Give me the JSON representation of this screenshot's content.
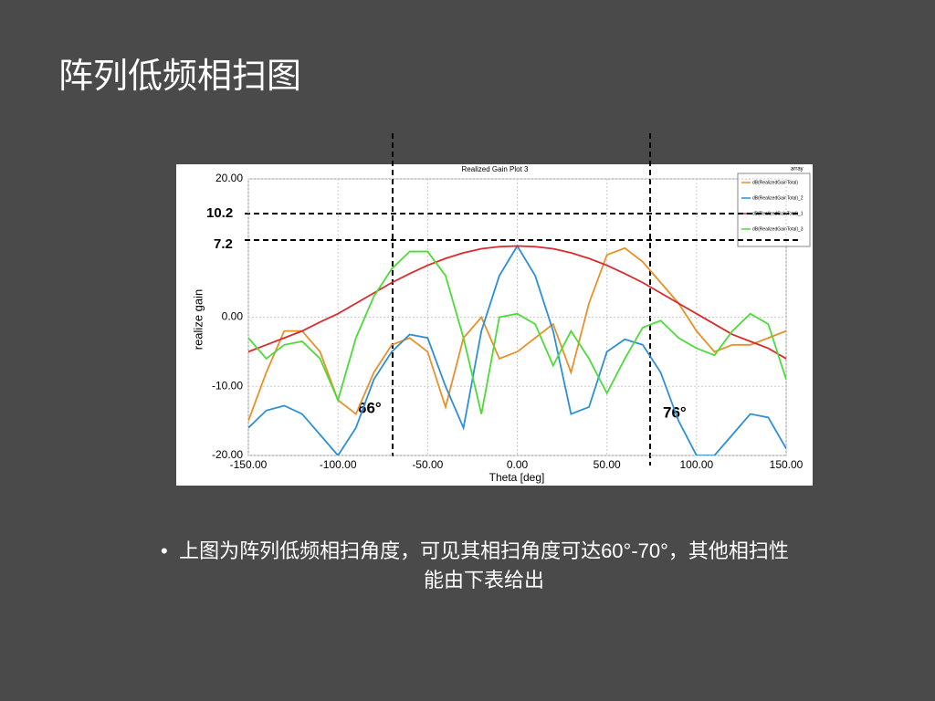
{
  "slide": {
    "title": "阵列低频相扫图",
    "bullet": "上图为阵列低频相扫角度，可见其相扫角度可达60°-70°，其他相扫性能由下表给出",
    "annotations": [
      "10.2",
      "7.2",
      "66°",
      "76°"
    ]
  },
  "chart_data": {
    "type": "line",
    "title": "Realized Gain Plot 3",
    "tag": "array",
    "x_label": "Theta [deg]",
    "y_label": "realize gain",
    "xlim": [
      -150,
      150
    ],
    "ylim": [
      -20,
      20
    ],
    "grid": true,
    "xticks": [
      {
        "value": -150,
        "label": "-150.00"
      },
      {
        "value": -100,
        "label": "-100.00"
      },
      {
        "value": -50,
        "label": "-50.00"
      },
      {
        "value": 0,
        "label": "0.00"
      },
      {
        "value": 50,
        "label": "50.00"
      },
      {
        "value": 100,
        "label": "100.00"
      },
      {
        "value": 150,
        "label": "150.00"
      }
    ],
    "yticks": [
      {
        "value": -20,
        "label": "-20.00"
      },
      {
        "value": -10,
        "label": "-10.00"
      },
      {
        "value": 0,
        "label": "0.00"
      },
      {
        "value": 20,
        "label": "20.00"
      }
    ],
    "x": [
      -150,
      -140,
      -130,
      -120,
      -110,
      -100,
      -90,
      -80,
      -70,
      -60,
      -50,
      -40,
      -30,
      -20,
      -10,
      0,
      10,
      20,
      30,
      40,
      50,
      60,
      70,
      80,
      90,
      100,
      110,
      120,
      130,
      140,
      150
    ],
    "series": [
      {
        "name": "dB(RealizedGainTotal)",
        "color": "#e8912c",
        "values": [
          -15,
          -8,
          -2,
          -2,
          -5,
          -12,
          -14,
          -8,
          -4,
          -3,
          -5,
          -13,
          -3,
          0,
          -6,
          -5,
          -3,
          -1,
          -8,
          2,
          9,
          10,
          8,
          5,
          2,
          -2,
          -5,
          -4,
          -4,
          -3,
          -2
        ]
      },
      {
        "name": "dB(RealizedGainTotal)_2",
        "color": "#2e8fd6",
        "values": [
          -16,
          -13.5,
          -12.8,
          -14,
          -17,
          -20,
          -16,
          -9,
          -5,
          -2.5,
          -3,
          -10,
          -16,
          -2,
          6,
          10.3,
          6,
          -2,
          -14,
          -13,
          -5,
          -3.2,
          -4,
          -8,
          -15,
          -20,
          -20,
          -17,
          -14,
          -14.5,
          -19
        ]
      },
      {
        "name": "dB(RealizedGainTotal)_1",
        "color": "#d92b2b",
        "values": [
          -5,
          -4,
          -3,
          -2,
          -0.7,
          0.5,
          2,
          3.5,
          5,
          6.3,
          7.5,
          8.5,
          9.3,
          9.9,
          10.2,
          10.3,
          10.2,
          9.9,
          9.3,
          8.5,
          7.5,
          6.3,
          5,
          3.5,
          2,
          0.5,
          -1,
          -2.5,
          -3.5,
          -4.5,
          -6
        ]
      },
      {
        "name": "dB(RealizedGainTotal)_3",
        "color": "#4ddb3a",
        "values": [
          -3,
          -6,
          -4,
          -3.5,
          -6,
          -12,
          -3,
          3,
          7,
          9.5,
          9.5,
          6,
          -3,
          -14,
          0,
          0.5,
          -1,
          -7,
          -2,
          -6,
          -11,
          -6,
          -1.5,
          -0.5,
          -3,
          -4.5,
          -5.5,
          -2,
          0.5,
          -1,
          -9
        ]
      }
    ]
  }
}
